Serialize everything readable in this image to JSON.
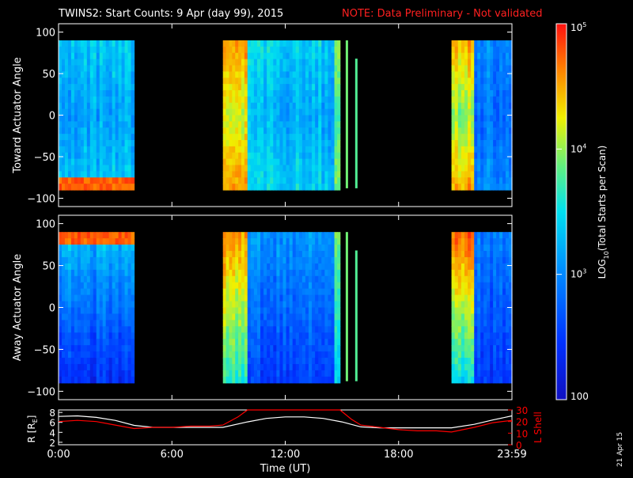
{
  "header": {
    "title": "TWINS2: Start Counts:  9 Apr (day  99), 2015",
    "note": "NOTE: Data Preliminary - Not validated"
  },
  "side_date": "21 Apr 15",
  "colors": {
    "note": "#ff2020",
    "lshell": "#ff0000",
    "r_line": "#ffffff"
  },
  "colorbar": {
    "label_prefix": "LOG",
    "label_sub": "10",
    "label_suffix": "(Total Starts per Scan)",
    "ticks": [
      {
        "text": "100",
        "exp": null,
        "value": 100
      },
      {
        "text": "10",
        "exp": "3",
        "value": 1000
      },
      {
        "text": "10",
        "exp": "4",
        "value": 10000
      },
      {
        "text": "10",
        "exp": "5",
        "value": 100000
      }
    ],
    "scale": "log",
    "range": [
      100,
      100000
    ]
  },
  "chart_data": [
    {
      "type": "heatmap",
      "ylabel": "Toward Actuator Angle",
      "ylim": [
        -110,
        110
      ],
      "yticks": [
        "100",
        "50",
        "0",
        "−50",
        "−100"
      ],
      "ytick_values": [
        100,
        50,
        0,
        -50,
        -100
      ],
      "xlim": [
        0,
        24
      ],
      "data_blocks": [
        {
          "x": [
            0,
            4.0
          ],
          "y": [
            -90,
            90
          ],
          "log_counts_range": [
            2.8,
            3.6
          ],
          "edge_high_near": -85
        },
        {
          "x": [
            8.7,
            10.0
          ],
          "y": [
            -90,
            90
          ],
          "log_counts_range": [
            3.6,
            4.9
          ]
        },
        {
          "x": [
            10.0,
            14.6
          ],
          "y": [
            -90,
            90
          ],
          "log_counts_range": [
            2.9,
            3.6
          ]
        },
        {
          "x": [
            14.6,
            14.9
          ],
          "y": [
            -90,
            90
          ],
          "log_counts_range": [
            3.3,
            4.0
          ]
        },
        {
          "x": [
            20.8,
            22.0
          ],
          "y": [
            -90,
            90
          ],
          "log_counts_range": [
            3.2,
            5.0
          ]
        },
        {
          "x": [
            22.0,
            24.0
          ],
          "y": [
            -90,
            90
          ],
          "log_counts_range": [
            2.6,
            3.2
          ]
        }
      ]
    },
    {
      "type": "heatmap",
      "ylabel": "Away Actuator Angle",
      "ylim": [
        -110,
        110
      ],
      "yticks": [
        "100",
        "50",
        "0",
        "−50",
        "−100"
      ],
      "ytick_values": [
        100,
        50,
        0,
        -50,
        -100
      ],
      "xlim": [
        0,
        24
      ],
      "data_blocks": [
        {
          "x": [
            0,
            4.0
          ],
          "y": [
            -90,
            90
          ],
          "log_counts_range": [
            2.2,
            3.5
          ],
          "edge_high_near": 85
        },
        {
          "x": [
            8.7,
            10.0
          ],
          "y": [
            -90,
            90
          ],
          "log_counts_range": [
            3.5,
            4.8
          ]
        },
        {
          "x": [
            10.0,
            14.6
          ],
          "y": [
            -90,
            90
          ],
          "log_counts_range": [
            2.4,
            3.2
          ]
        },
        {
          "x": [
            14.6,
            14.9
          ],
          "y": [
            -90,
            90
          ],
          "log_counts_range": [
            3.3,
            4.0
          ]
        },
        {
          "x": [
            20.8,
            22.0
          ],
          "y": [
            -90,
            90
          ],
          "log_counts_range": [
            3.2,
            5.0
          ]
        },
        {
          "x": [
            22.0,
            24.0
          ],
          "y": [
            -90,
            90
          ],
          "log_counts_range": [
            2.4,
            3.0
          ]
        }
      ]
    },
    {
      "type": "line",
      "xlabel": "Time (UT)",
      "xlim": [
        0,
        24
      ],
      "x_ticks": [
        "0:00",
        "6:00",
        "12:00",
        "18:00",
        "23:59"
      ],
      "x_tick_values": [
        0,
        6,
        12,
        18,
        24
      ],
      "ylabel_left": "R [R",
      "ylabel_left_sub": "E",
      "ylabel_left_end": "]",
      "ylim_left": [
        1.5,
        8.5
      ],
      "yticks_left": [
        "2",
        "4",
        "6",
        "8"
      ],
      "ytick_values_left": [
        2,
        4,
        6,
        8
      ],
      "ylabel_right": "L Shell",
      "ylim_right": [
        0,
        30
      ],
      "yticks_right": [
        "0",
        "10",
        "20",
        "30"
      ],
      "ytick_values_right": [
        0,
        10,
        20,
        30
      ],
      "series": [
        {
          "axis": "left",
          "x": [
            0,
            1,
            2,
            3,
            4,
            5,
            6,
            7,
            8,
            8.7,
            10,
            11,
            12,
            13,
            14,
            15,
            16,
            17,
            18,
            19,
            20,
            20.8,
            22,
            23,
            24
          ],
          "y": [
            7.2,
            7.3,
            7.0,
            6.4,
            5.4,
            5.0,
            5.0,
            5.0,
            5.0,
            5.0,
            6.1,
            6.8,
            7.1,
            7.1,
            6.8,
            6.1,
            5.1,
            4.9,
            4.9,
            4.9,
            4.9,
            4.9,
            5.6,
            6.5,
            7.3
          ]
        },
        {
          "axis": "right",
          "x": [
            0,
            1,
            2,
            3,
            4,
            5,
            6,
            7,
            8,
            8.7,
            9.5,
            10.0,
            14.9,
            15.5,
            16,
            17,
            18,
            19,
            20,
            20.8,
            22,
            23,
            24
          ],
          "y": [
            20,
            21,
            20,
            17,
            14,
            15,
            15,
            16,
            16,
            17,
            24,
            30,
            30,
            22,
            17,
            15,
            13,
            12,
            12,
            11,
            15,
            19,
            21
          ]
        }
      ]
    }
  ]
}
